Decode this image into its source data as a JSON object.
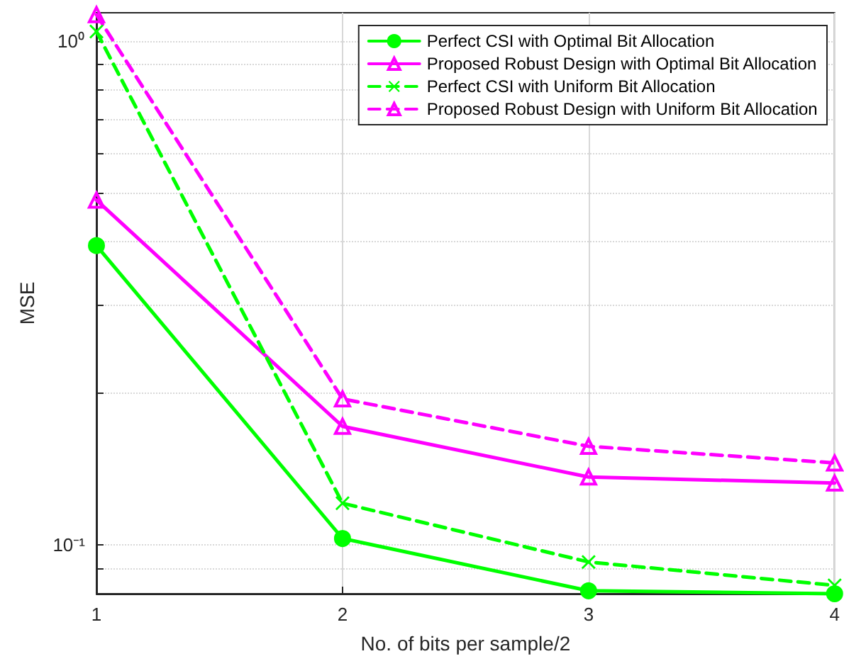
{
  "chart_data": {
    "type": "line",
    "xlabel": "No. of bits per sample/2",
    "ylabel": "MSE",
    "x": [
      1,
      2,
      3,
      4
    ],
    "xlim": [
      1,
      4
    ],
    "xticks": [
      1,
      2,
      3,
      4
    ],
    "log": "y",
    "ylim": [
      0.08,
      1.14
    ],
    "yticks": [
      {
        "value": 0.09,
        "label": null
      },
      {
        "value": 0.1,
        "label": "10⁻¹"
      },
      {
        "value": 0.2,
        "label": null
      },
      {
        "value": 0.3,
        "label": null
      },
      {
        "value": 0.4,
        "label": null
      },
      {
        "value": 0.5,
        "label": null
      },
      {
        "value": 0.6,
        "label": null
      },
      {
        "value": 0.7,
        "label": null
      },
      {
        "value": 0.8,
        "label": null
      },
      {
        "value": 0.9,
        "label": null
      },
      {
        "value": 1,
        "label": "10⁰"
      }
    ],
    "grid": true,
    "legend": "top right",
    "series": [
      {
        "name": "Perfect CSI with Optimal Bit Allocation",
        "color": "#00ff00",
        "marker": "circle",
        "line_style": "solid",
        "values": [
          0.393,
          0.103,
          0.0811,
          0.08
        ]
      },
      {
        "name": "Proposed Robust Design with Optimal Bit Allocation",
        "color": "#ff00ff",
        "marker": "triangle",
        "line_style": "solid",
        "values": [
          0.484,
          0.172,
          0.1364,
          0.1327
        ]
      },
      {
        "name": "Perfect CSI with Uniform Bit Allocation",
        "color": "#00ff00",
        "marker": "cross",
        "line_style": "dashed",
        "values": [
          1.046,
          0.121,
          0.0925,
          0.0831
        ]
      },
      {
        "name": "Proposed Robust Design with Uniform Bit Allocation",
        "color": "#ff00ff",
        "marker": "triangle",
        "line_style": "dashed",
        "values": [
          1.13,
          0.195,
          0.157,
          0.1455
        ]
      }
    ]
  }
}
